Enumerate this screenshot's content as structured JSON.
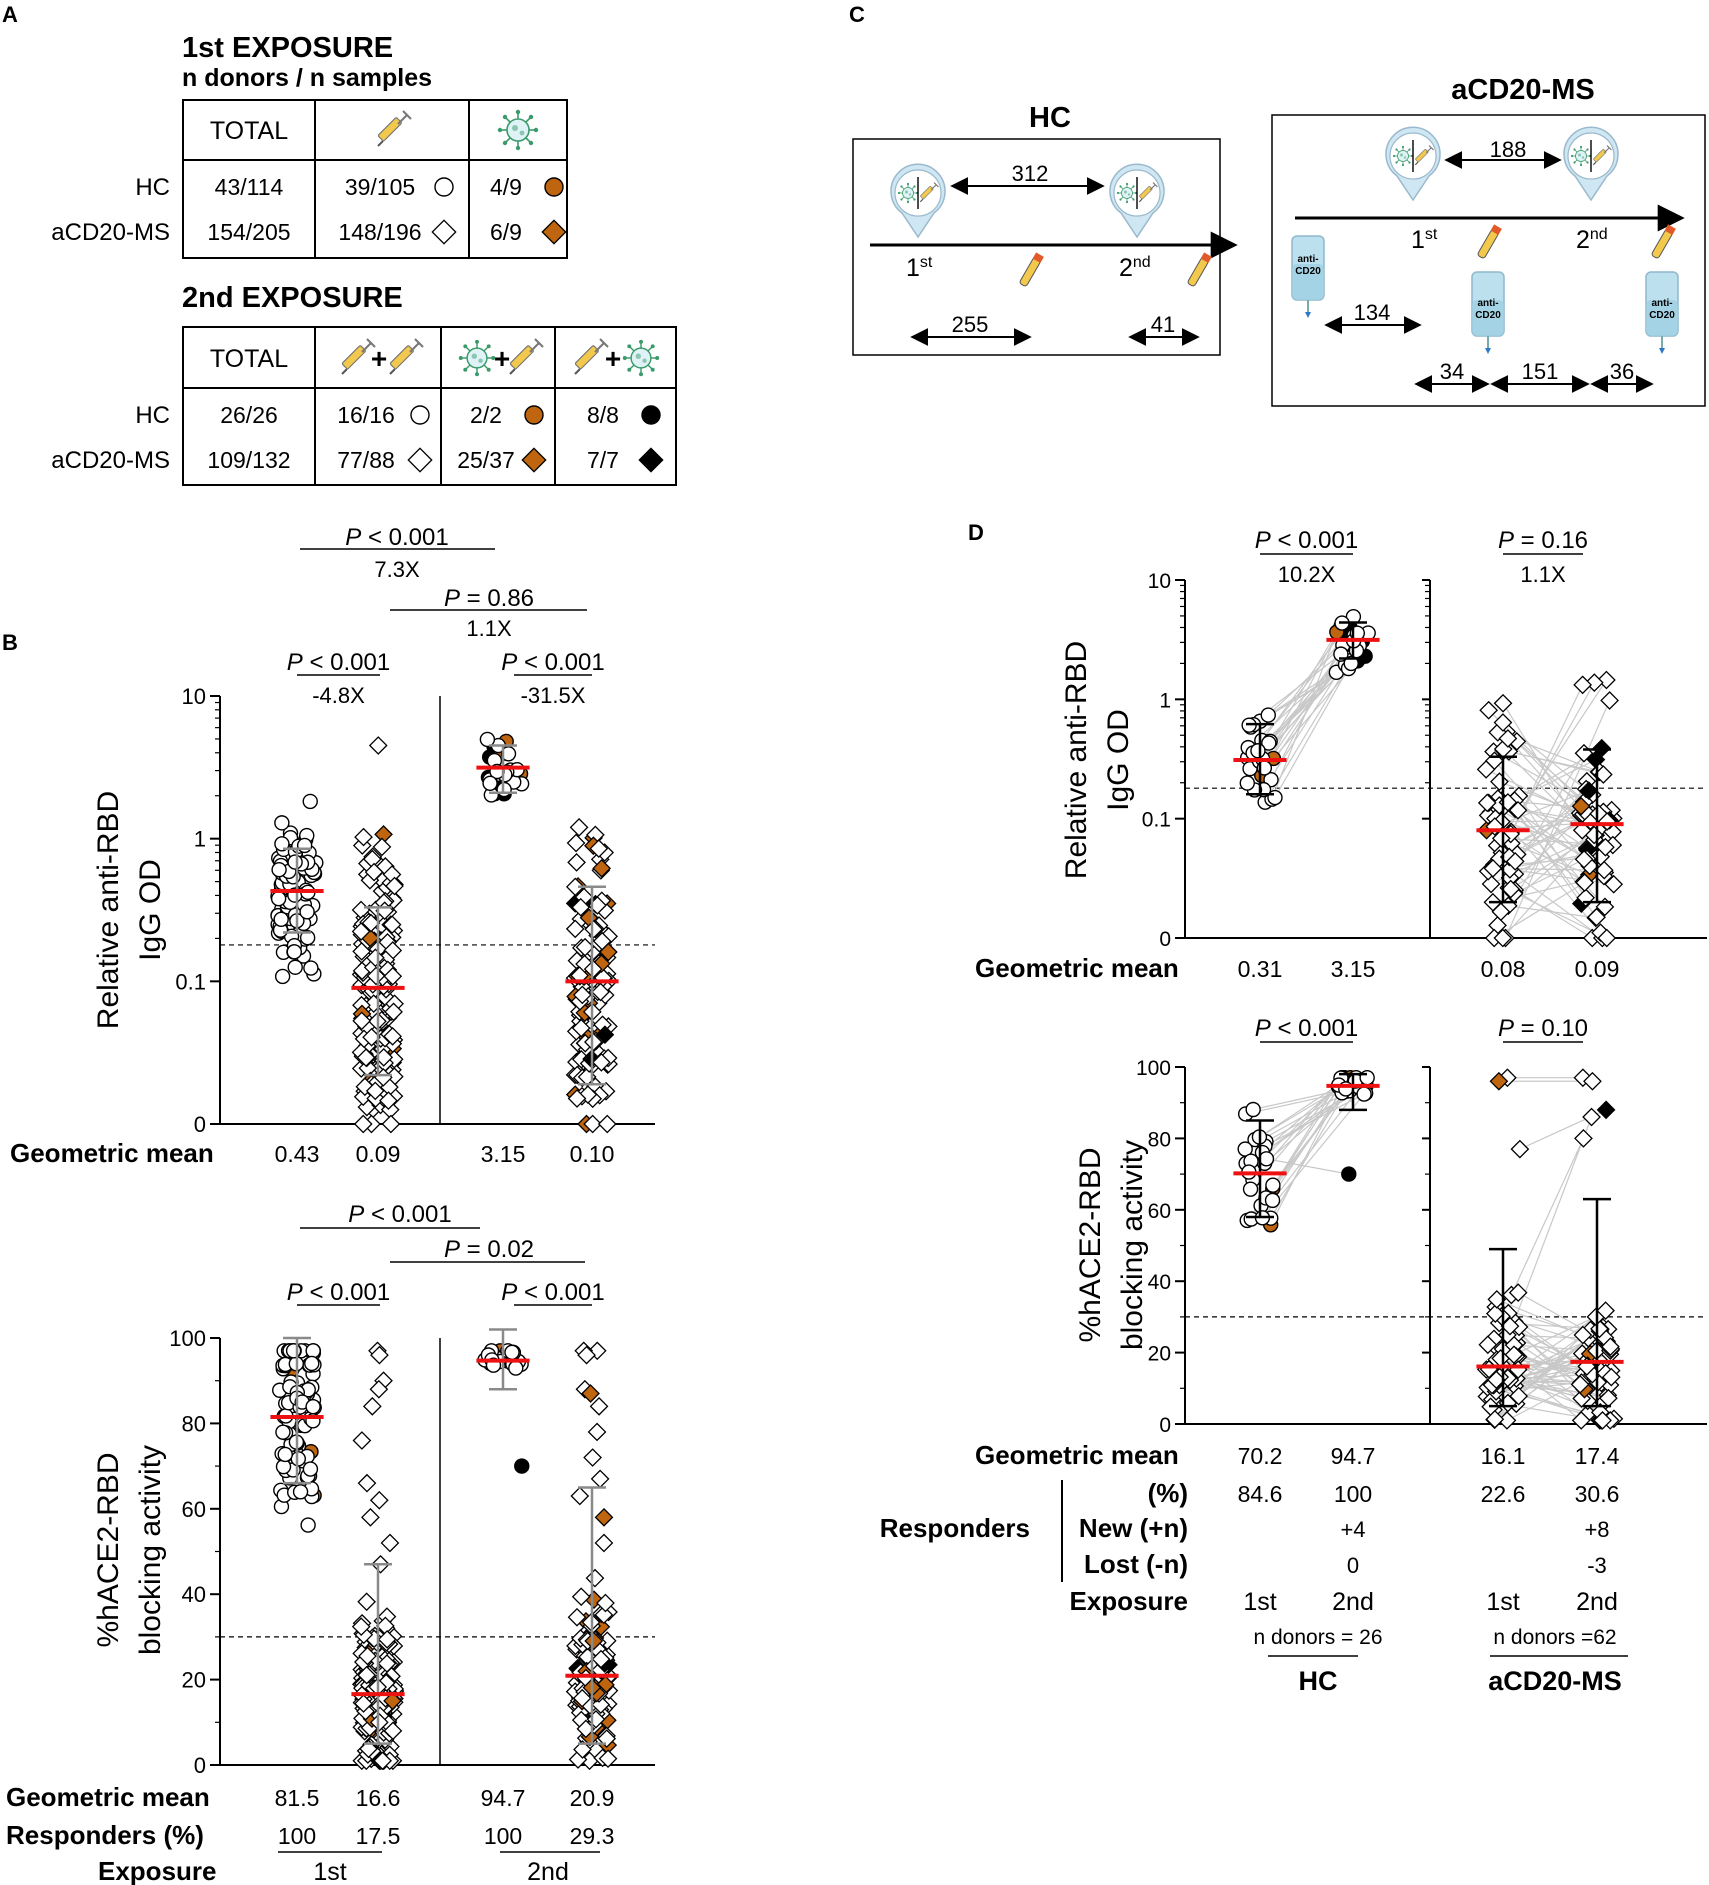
{
  "colors": {
    "orange": "#C0650F",
    "black": "#000000",
    "red": "#EE1111",
    "grey": "#8a8a8a",
    "line": "#c8c8c8"
  },
  "panelA": {
    "letter": "A",
    "first": {
      "title": "1st EXPOSURE",
      "subtitle": "n donors / n samples",
      "header": [
        "TOTAL",
        "syringe-icon",
        "virus-icon"
      ],
      "rows": [
        {
          "label": "HC",
          "cells": [
            "43/114",
            "39/105",
            "4/9"
          ],
          "symbols": [
            "",
            "circle-open",
            "circle-orange"
          ]
        },
        {
          "label": "aCD20-MS",
          "cells": [
            "154/205",
            "148/196",
            "6/9"
          ],
          "symbols": [
            "",
            "diamond-open",
            "diamond-orange"
          ]
        }
      ]
    },
    "second": {
      "title": "2nd EXPOSURE",
      "header": [
        "TOTAL",
        "syringe+syringe",
        "virus+syringe",
        "syringe+virus"
      ],
      "plus": "+",
      "rows": [
        {
          "label": "HC",
          "cells": [
            "26/26",
            "16/16",
            "2/2",
            "8/8"
          ],
          "symbols": [
            "",
            "circle-open",
            "circle-orange",
            "circle-black"
          ]
        },
        {
          "label": "aCD20-MS",
          "cells": [
            "109/132",
            "77/88",
            "25/37",
            "7/7"
          ],
          "symbols": [
            "",
            "diamond-open",
            "diamond-orange",
            "diamond-black"
          ]
        }
      ]
    }
  },
  "panelB": {
    "letter": "B",
    "igg": {
      "ylabel1": "Relative anti-RBD",
      "ylabel2": "IgG OD",
      "ticks": [
        "10",
        "1",
        "0.1",
        "0"
      ],
      "rowlabel": "Geometric mean",
      "means": [
        "0.43",
        "0.09",
        "3.15",
        "0.10"
      ],
      "stats_top": [
        {
          "p": "P",
          "op": " < 0.001",
          "fold": "7.3X"
        },
        {
          "p": "P",
          "op": " = 0.86",
          "fold": "1.1X"
        }
      ],
      "stats_inner": [
        {
          "p": "P",
          "op": " < 0.001",
          "fold": "-4.8X"
        },
        {
          "p": "P",
          "op": " < 0.001",
          "fold": "-31.5X"
        }
      ]
    },
    "ace": {
      "ylabel1": "%hACE2-RBD",
      "ylabel2": "blocking activity",
      "ticks": [
        "100",
        "80",
        "60",
        "40",
        "20",
        "0"
      ],
      "rows": [
        {
          "label": "Geometric mean",
          "values": [
            "81.5",
            "16.6",
            "94.7",
            "20.9"
          ]
        },
        {
          "label": "Responders (%)",
          "values": [
            "100",
            "17.5",
            "100",
            "29.3"
          ]
        }
      ],
      "exposure_label": "Exposure",
      "exposures": [
        "1st",
        "2nd"
      ],
      "stats_top": [
        {
          "p": "P",
          "op": " < 0.001"
        },
        {
          "p": "P",
          "op": " = 0.02"
        }
      ],
      "stats_inner": [
        {
          "p": "P",
          "op": " < 0.001"
        },
        {
          "p": "P",
          "op": " < 0.001"
        }
      ]
    }
  },
  "panelC": {
    "letter": "C",
    "hc": {
      "title": "HC",
      "interval_top": "312",
      "d1": "1",
      "d1sup": "st",
      "d2": "2",
      "d2sup": "nd",
      "int_a": "255",
      "int_b": "41"
    },
    "ms": {
      "title": "aCD20-MS",
      "interval_top": "188",
      "d1": "1",
      "d1sup": "st",
      "d2": "2",
      "d2sup": "nd",
      "bag_text1": "anti-",
      "bag_text2": "CD20",
      "int_a": "134",
      "int_b": "34",
      "int_c": "151",
      "int_d": "36"
    }
  },
  "panelD": {
    "letter": "D",
    "igg": {
      "ylabel1": "Relative anti-RBD",
      "ylabel2": "IgG OD",
      "ticks": [
        "10",
        "1",
        "0.1",
        "0"
      ],
      "rowlabel": "Geometric mean",
      "means": [
        "0.31",
        "3.15",
        "0.08",
        "0.09"
      ],
      "stats": [
        {
          "p": "P",
          "op": " < 0.001",
          "fold": "10.2X"
        },
        {
          "p": "P",
          "op": " = 0.16",
          "fold": "1.1X"
        }
      ]
    },
    "ace": {
      "ylabel1": "%hACE2-RBD",
      "ylabel2": "blocking activity",
      "ticks": [
        "100",
        "80",
        "60",
        "40",
        "20",
        "0"
      ],
      "stats": [
        {
          "p": "P",
          "op": " < 0.001"
        },
        {
          "p": "P",
          "op": " = 0.10"
        }
      ],
      "gm_label": "Geometric mean",
      "gm": [
        "70.2",
        "94.7",
        "16.1",
        "17.4"
      ],
      "responders_label": "Responders",
      "pct_label": "(%)",
      "pct": [
        "84.6",
        "100",
        "22.6",
        "30.6"
      ],
      "new_label": "New (+n)",
      "new": [
        "+4",
        "+8"
      ],
      "lost_label": "Lost (-n)",
      "lost": [
        "0",
        "-3"
      ],
      "exposure_label": "Exposure",
      "exposures": [
        "1st",
        "2nd",
        "1st",
        "2nd"
      ],
      "n_donors": [
        "n donors = 26",
        "n donors =62"
      ],
      "groups": [
        "HC",
        "aCD20-MS"
      ]
    }
  }
}
